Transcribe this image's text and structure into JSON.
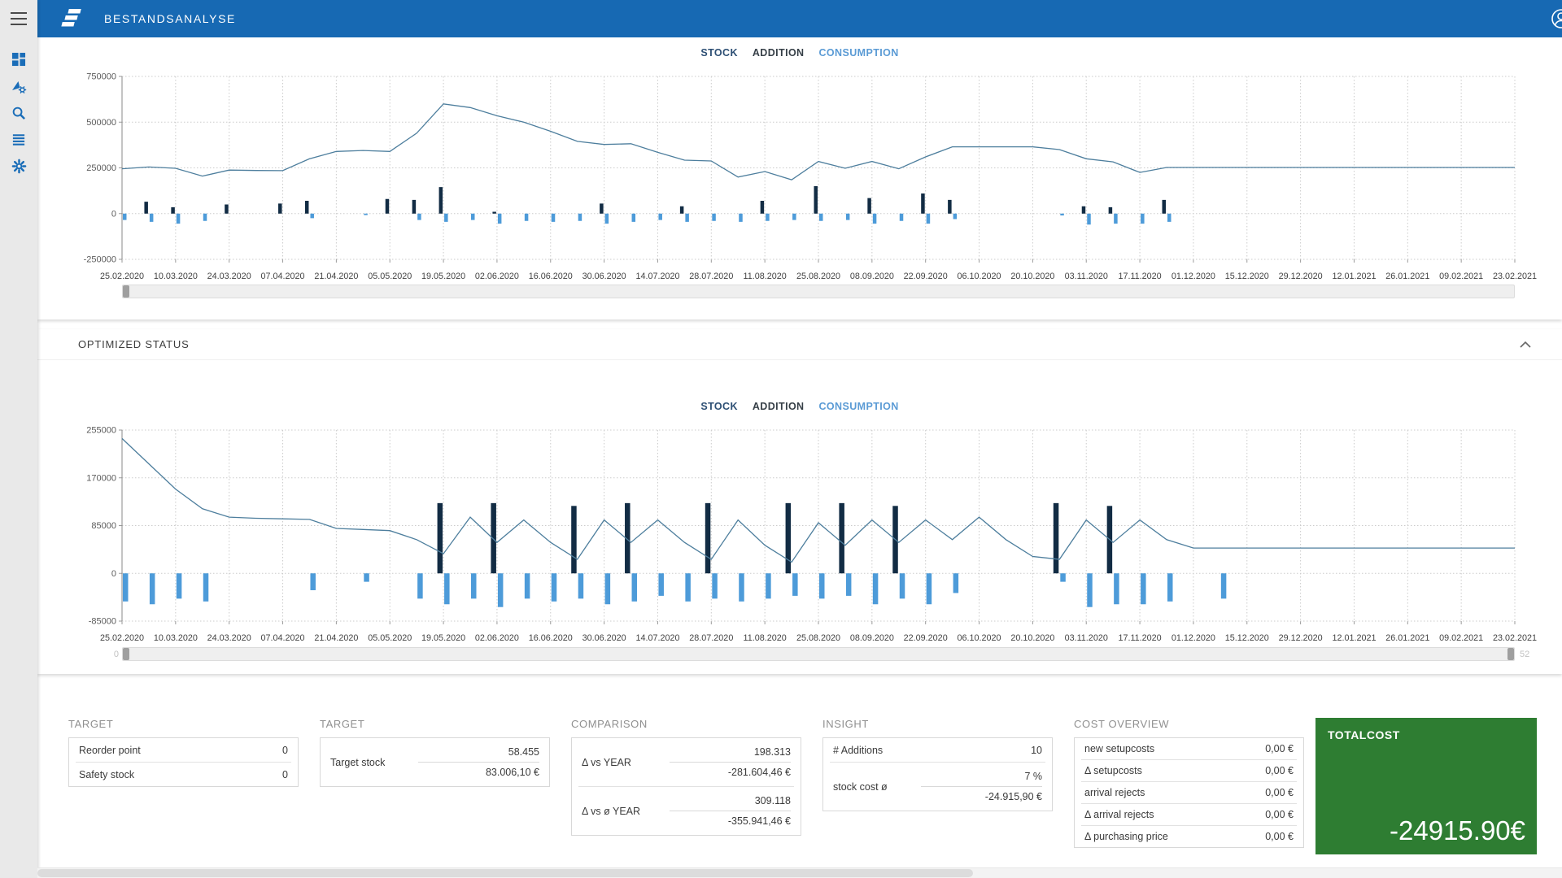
{
  "header": {
    "title": "BESTANDSANALYSE"
  },
  "sidebar": {
    "icons": [
      "dashboard-icon",
      "analytics-icon",
      "search-icon",
      "list-icon",
      "settings-icon"
    ]
  },
  "sections": {
    "optimized_status": "OPTIMIZED STATUS"
  },
  "sliders": {
    "min_label": "0",
    "max_label": "52"
  },
  "colors": {
    "header_blue": "#1769b3",
    "icon_blue": "#1a6db8",
    "stock_line": "#4d7e9d",
    "addition_bar": "#122c44",
    "consumption_bar": "#4d9bd9",
    "total_green": "#2e7d32"
  },
  "chart_data": [
    {
      "type": "line+bar",
      "name": "status-quo",
      "legend": [
        {
          "label": "STOCK",
          "color": "#2d4f74"
        },
        {
          "label": "ADDITION",
          "color": "#363f47"
        },
        {
          "label": "CONSUMPTION",
          "color": "#5b9bd5"
        }
      ],
      "x_tick_labels": [
        "25.02.2020",
        "10.03.2020",
        "24.03.2020",
        "07.04.2020",
        "21.04.2020",
        "05.05.2020",
        "19.05.2020",
        "02.06.2020",
        "16.06.2020",
        "30.06.2020",
        "14.07.2020",
        "28.07.2020",
        "11.08.2020",
        "25.08.2020",
        "08.09.2020",
        "22.09.2020",
        "06.10.2020",
        "20.10.2020",
        "03.11.2020",
        "17.11.2020",
        "01.12.2020",
        "15.12.2020",
        "29.12.2020",
        "12.01.2021",
        "26.01.2021",
        "09.02.2021",
        "23.02.2021"
      ],
      "ylim": [
        -250000,
        750000
      ],
      "yticks": [
        750000,
        500000,
        250000,
        0,
        -250000
      ],
      "series": [
        {
          "name": "STOCK",
          "kind": "line",
          "color": "#4d7e9d",
          "values": [
            245000,
            255000,
            248000,
            205000,
            238000,
            236000,
            235000,
            300000,
            340000,
            345000,
            340000,
            440000,
            600000,
            580000,
            535000,
            500000,
            450000,
            395000,
            378000,
            382000,
            335000,
            292000,
            288000,
            200000,
            230000,
            185000,
            285000,
            248000,
            285000,
            245000,
            310000,
            365000,
            365000,
            365000,
            365000,
            350000,
            300000,
            283000,
            225000,
            252000,
            252000,
            252000,
            252000,
            252000,
            252000,
            252000,
            252000,
            252000,
            252000,
            252000,
            252000,
            252000,
            252000
          ]
        },
        {
          "name": "ADDITION",
          "kind": "bar",
          "color": "#122c44",
          "values": [
            0,
            65000,
            35000,
            0,
            50000,
            0,
            55000,
            70000,
            0,
            0,
            80000,
            75000,
            145000,
            0,
            10000,
            0,
            0,
            0,
            55000,
            0,
            0,
            40000,
            0,
            0,
            70000,
            0,
            150000,
            0,
            85000,
            0,
            110000,
            75000,
            0,
            0,
            0,
            0,
            40000,
            35000,
            0,
            75000,
            0,
            0,
            0,
            0,
            0,
            0,
            0,
            0,
            0,
            0,
            0,
            0,
            0
          ]
        },
        {
          "name": "CONSUMPTION",
          "kind": "bar",
          "color": "#4d9bd9",
          "values": [
            -35000,
            -45000,
            -55000,
            -40000,
            0,
            0,
            0,
            -25000,
            0,
            -8000,
            0,
            -35000,
            -45000,
            -35000,
            -55000,
            -40000,
            -45000,
            -40000,
            -55000,
            -45000,
            -35000,
            -45000,
            -40000,
            -45000,
            -40000,
            -35000,
            -40000,
            -35000,
            -55000,
            -40000,
            -55000,
            -30000,
            0,
            0,
            0,
            -10000,
            -60000,
            -55000,
            -55000,
            -45000,
            0,
            0,
            0,
            0,
            0,
            0,
            0,
            0,
            0,
            0,
            0,
            0,
            0
          ]
        }
      ]
    },
    {
      "type": "line+bar",
      "name": "optimized",
      "legend": [
        {
          "label": "STOCK",
          "color": "#2d4f74"
        },
        {
          "label": "ADDITION",
          "color": "#363f47"
        },
        {
          "label": "CONSUMPTION",
          "color": "#5b9bd5"
        }
      ],
      "x_tick_labels": [
        "25.02.2020",
        "10.03.2020",
        "24.03.2020",
        "07.04.2020",
        "21.04.2020",
        "05.05.2020",
        "19.05.2020",
        "02.06.2020",
        "16.06.2020",
        "30.06.2020",
        "14.07.2020",
        "28.07.2020",
        "11.08.2020",
        "25.08.2020",
        "08.09.2020",
        "22.09.2020",
        "06.10.2020",
        "20.10.2020",
        "03.11.2020",
        "17.11.2020",
        "01.12.2020",
        "15.12.2020",
        "29.12.2020",
        "12.01.2021",
        "26.01.2021",
        "09.02.2021",
        "23.02.2021"
      ],
      "ylim": [
        -85000,
        255000
      ],
      "yticks": [
        255000,
        170000,
        85000,
        0,
        -85000
      ],
      "series": [
        {
          "name": "STOCK",
          "kind": "line",
          "color": "#4d7e9d",
          "values": [
            240000,
            195000,
            150000,
            115000,
            100000,
            98000,
            97000,
            96000,
            80000,
            78000,
            76000,
            60000,
            35000,
            100000,
            55000,
            95000,
            55000,
            25000,
            95000,
            55000,
            95000,
            55000,
            25000,
            95000,
            50000,
            20000,
            90000,
            50000,
            95000,
            55000,
            95000,
            60000,
            100000,
            60000,
            30000,
            25000,
            95000,
            55000,
            95000,
            60000,
            45000,
            45000,
            45000,
            45000,
            45000,
            45000,
            45000,
            45000,
            45000,
            45000,
            45000,
            45000,
            45000
          ]
        },
        {
          "name": "ADDITION",
          "kind": "bar",
          "color": "#122c44",
          "values": [
            0,
            0,
            0,
            0,
            0,
            0,
            0,
            0,
            0,
            0,
            0,
            0,
            125000,
            0,
            125000,
            0,
            0,
            120000,
            0,
            125000,
            0,
            0,
            125000,
            0,
            0,
            125000,
            0,
            125000,
            0,
            120000,
            0,
            0,
            0,
            0,
            0,
            125000,
            0,
            120000,
            0,
            0,
            0,
            0,
            0,
            0,
            0,
            0,
            0,
            0,
            0,
            0,
            0,
            0,
            0
          ]
        },
        {
          "name": "CONSUMPTION",
          "kind": "bar",
          "color": "#4d9bd9",
          "values": [
            -50000,
            -55000,
            -45000,
            -50000,
            0,
            0,
            0,
            -30000,
            0,
            -15000,
            0,
            -45000,
            -55000,
            -45000,
            -60000,
            -45000,
            -50000,
            -45000,
            -55000,
            -50000,
            -40000,
            -50000,
            -45000,
            -50000,
            -45000,
            -40000,
            -45000,
            -40000,
            -55000,
            -45000,
            -55000,
            -35000,
            0,
            0,
            0,
            -15000,
            -60000,
            -55000,
            -55000,
            -50000,
            0,
            -45000,
            0,
            0,
            0,
            0,
            0,
            0,
            0,
            0,
            0,
            0,
            0
          ]
        }
      ]
    }
  ],
  "cards": {
    "target1": {
      "title": "TARGET",
      "rows": [
        {
          "label": "Reorder point",
          "value": "0"
        },
        {
          "label": "Safety stock",
          "value": "0"
        }
      ]
    },
    "target2": {
      "title": "TARGET",
      "group": {
        "label": "Target stock",
        "value_top": "58.455",
        "value_bottom": "83.006,10 €"
      }
    },
    "comparison": {
      "title": "COMPARISON",
      "groups": [
        {
          "label": "Δ vs YEAR",
          "value_top": "198.313",
          "value_bottom": "-281.604,46 €"
        },
        {
          "label": "Δ vs ø YEAR",
          "value_top": "309.118",
          "value_bottom": "-355.941,46 €"
        }
      ]
    },
    "insight": {
      "title": "INSIGHT",
      "rows": [
        {
          "label": "# Additions",
          "value": "10"
        }
      ],
      "group": {
        "label": "stock cost ø",
        "value_top": "7 %",
        "value_bottom": "-24.915,90 €"
      }
    },
    "cost_overview": {
      "title": "COST OVERVIEW",
      "rows": [
        {
          "label": "new setupcosts",
          "value": "0,00 €"
        },
        {
          "label": "Δ setupcosts",
          "value": "0,00 €"
        },
        {
          "label": "arrival rejects",
          "value": "0,00 €"
        },
        {
          "label": "Δ arrival rejects",
          "value": "0,00 €"
        },
        {
          "label": "Δ purchasing price",
          "value": "0,00 €"
        }
      ]
    },
    "totalcost": {
      "title": "TOTALCOST",
      "value": "-24915.90€"
    }
  }
}
